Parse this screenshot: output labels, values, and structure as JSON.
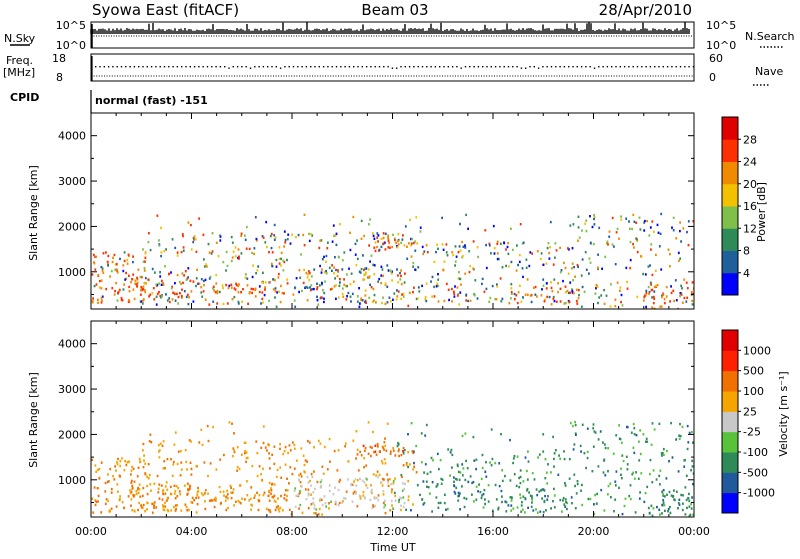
{
  "header": {
    "site": "Syowa East (fitACF)",
    "beam": "Beam 03",
    "date": "28/Apr/2010"
  },
  "top_panels": {
    "nsky_label": "N.Sky",
    "nsky_ticks": [
      "10^5",
      "10^0"
    ],
    "nsearch_label": "N.Search",
    "nsearch_ticks": [
      "10^5",
      "10^0"
    ],
    "freq_label": "Freq.",
    "freq_unit": "[MHz]",
    "freq_ticks": [
      "18",
      "8"
    ],
    "nave_label": "Nave",
    "nave_ticks": [
      "60",
      "0"
    ],
    "cpid_label": "CPID",
    "cpid_value": "normal (fast) -151"
  },
  "chart_data": [
    {
      "type": "heatmap",
      "name": "power",
      "ylabel": "Slant Range [km]",
      "yticks": [
        "4000",
        "3000",
        "2000",
        "1000"
      ],
      "ylim": [
        180,
        4500
      ],
      "xlim": [
        0,
        24
      ],
      "colorbar_label": "Power [dB]",
      "colorbar_ticks": [
        "28",
        "24",
        "20",
        "16",
        "12",
        "8",
        "4"
      ],
      "colorbar_colors": [
        "#0000ff",
        "#20609a",
        "#2e8b57",
        "#7fc04a",
        "#f2c200",
        "#f08a00",
        "#ff3000",
        "#e00000"
      ]
    },
    {
      "type": "heatmap",
      "name": "velocity",
      "ylabel": "Slant Range [km]",
      "yticks": [
        "4000",
        "3000",
        "2000",
        "1000"
      ],
      "ylim": [
        180,
        4500
      ],
      "xlim": [
        0,
        24
      ],
      "xlabel": "Time UT",
      "xticks": [
        "00:00",
        "04:00",
        "08:00",
        "12:00",
        "16:00",
        "20:00",
        "00:00"
      ],
      "colorbar_label": "Velocity [m s⁻¹]",
      "colorbar_ticks": [
        "1000",
        "500",
        "100",
        "25",
        "-25",
        "-100",
        "-500",
        "-1000"
      ],
      "colorbar_colors": [
        "#0000ff",
        "#205a9c",
        "#2e8b57",
        "#58c23a",
        "#c8c8c8",
        "#f5a500",
        "#f07000",
        "#ff2000",
        "#e00000"
      ]
    }
  ]
}
